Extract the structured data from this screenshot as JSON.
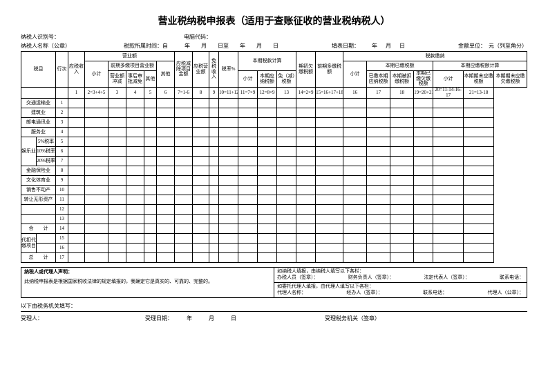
{
  "title": "营业税纳税申报表（适用于查账征收的营业税纳税人）",
  "header": {
    "id_label": "纳税人识别号：",
    "computer_code": "电脑代码：",
    "name_label": "纳税人名称（公章）",
    "period_label": "税款所属时间：自",
    "year": "年",
    "month": "月",
    "day": "日",
    "to": "日至",
    "fill_date": "填表日期：",
    "unit": "金额单位：　元（列至角分）"
  },
  "groups": {
    "g1": "前期多缴项目营业额",
    "g2": "营业额",
    "g3": "应税减除项目金额",
    "g4": "本期税款计算",
    "g5": "税款缴纳",
    "g6": "本期已缴税额",
    "g7": "本期应缴税额计算"
  },
  "cols": {
    "c_label_1": "税目",
    "c_label_2": "行次",
    "c0": "应税收入",
    "c_sub": "小计",
    "c3": "营业额冲减",
    "c4": "事后审批减免",
    "c5": "其他",
    "c7": "应税营业额",
    "c8": "免税收入",
    "c9": "税率%",
    "c10": "小计",
    "c11": "本期应纳税额",
    "c12": "免（减）税额",
    "c13": "期初欠缴税额",
    "c14": "前期多缴税额",
    "c15": "小计",
    "c16": "已缴本期应纳税额",
    "c17": "本期被扣缴税额",
    "c18": "本期已缴欠缴税额",
    "c19": "小计",
    "c20": "本期期末应缴税额",
    "c21": "本期期末应缴欠缴税额"
  },
  "formulas": {
    "f1": "1",
    "f2": "2=3+4+5",
    "f3": "3",
    "f4": "4",
    "f5": "5",
    "f6": "6",
    "f7": "7=1-6",
    "f8": "8",
    "f9": "9",
    "f10": "10=11+12",
    "f11": "11=7×9",
    "f12": "12=8×9",
    "f13": "13",
    "f14": "14=2×9",
    "f15": "15=16+17+18",
    "f16": "16",
    "f17": "17",
    "f18": "18",
    "f19": "19=20+21",
    "f20": "20=11-14-16-17",
    "f21": "21=13-18"
  },
  "rows": {
    "r1": "交通运输业",
    "r2": "建筑业",
    "r3": "邮电通讯业",
    "r4": "服务业",
    "r5a": "娱乐业",
    "r5": "5%税率",
    "r6": "10%税率",
    "r7": "20%税率",
    "r8": "金融保险业",
    "r9": "文化体育业",
    "r10": "销售不动产",
    "r11": "转让无形资产",
    "r14": "合　　计",
    "r15": "代扣代缴项目",
    "r17": "总　　计"
  },
  "nums": {
    "n1": "1",
    "n2": "2",
    "n3": "3",
    "n4": "4",
    "n5": "5",
    "n6": "6",
    "n7": "7",
    "n8": "8",
    "n9": "9",
    "n10": "10",
    "n11": "11",
    "n12": "12",
    "n13": "13",
    "n14": "14",
    "n15": "15",
    "n16": "16",
    "n17": "17"
  },
  "footer": {
    "decl_title": "纳税人或代理人声明：",
    "decl_body": "此纳税申报表是根据国家税收法律的规定填报的，我确定它是真实的、可靠的、完整的。",
    "auth_note": "如纳税人填报，由纳税人填写以下各栏：",
    "bank": "办税人员（签章）：",
    "finance": "财务负责人（签章）：",
    "legal": "法定代表人（签章）：",
    "phone": "联系电话：",
    "agent_note": "如委托代理人填报，由代理人填写以下各栏：",
    "agent_name": "代理人名称：",
    "agent_handler": "经办人（签章）：",
    "agent_seal": "代理人（公章）：",
    "below_label": "以下由税务机关填写：",
    "receiver": "受理人：",
    "receive_date": "受理日期：　　　年　　　月　　　日",
    "receive_org": "受理税务机关（签章）"
  }
}
